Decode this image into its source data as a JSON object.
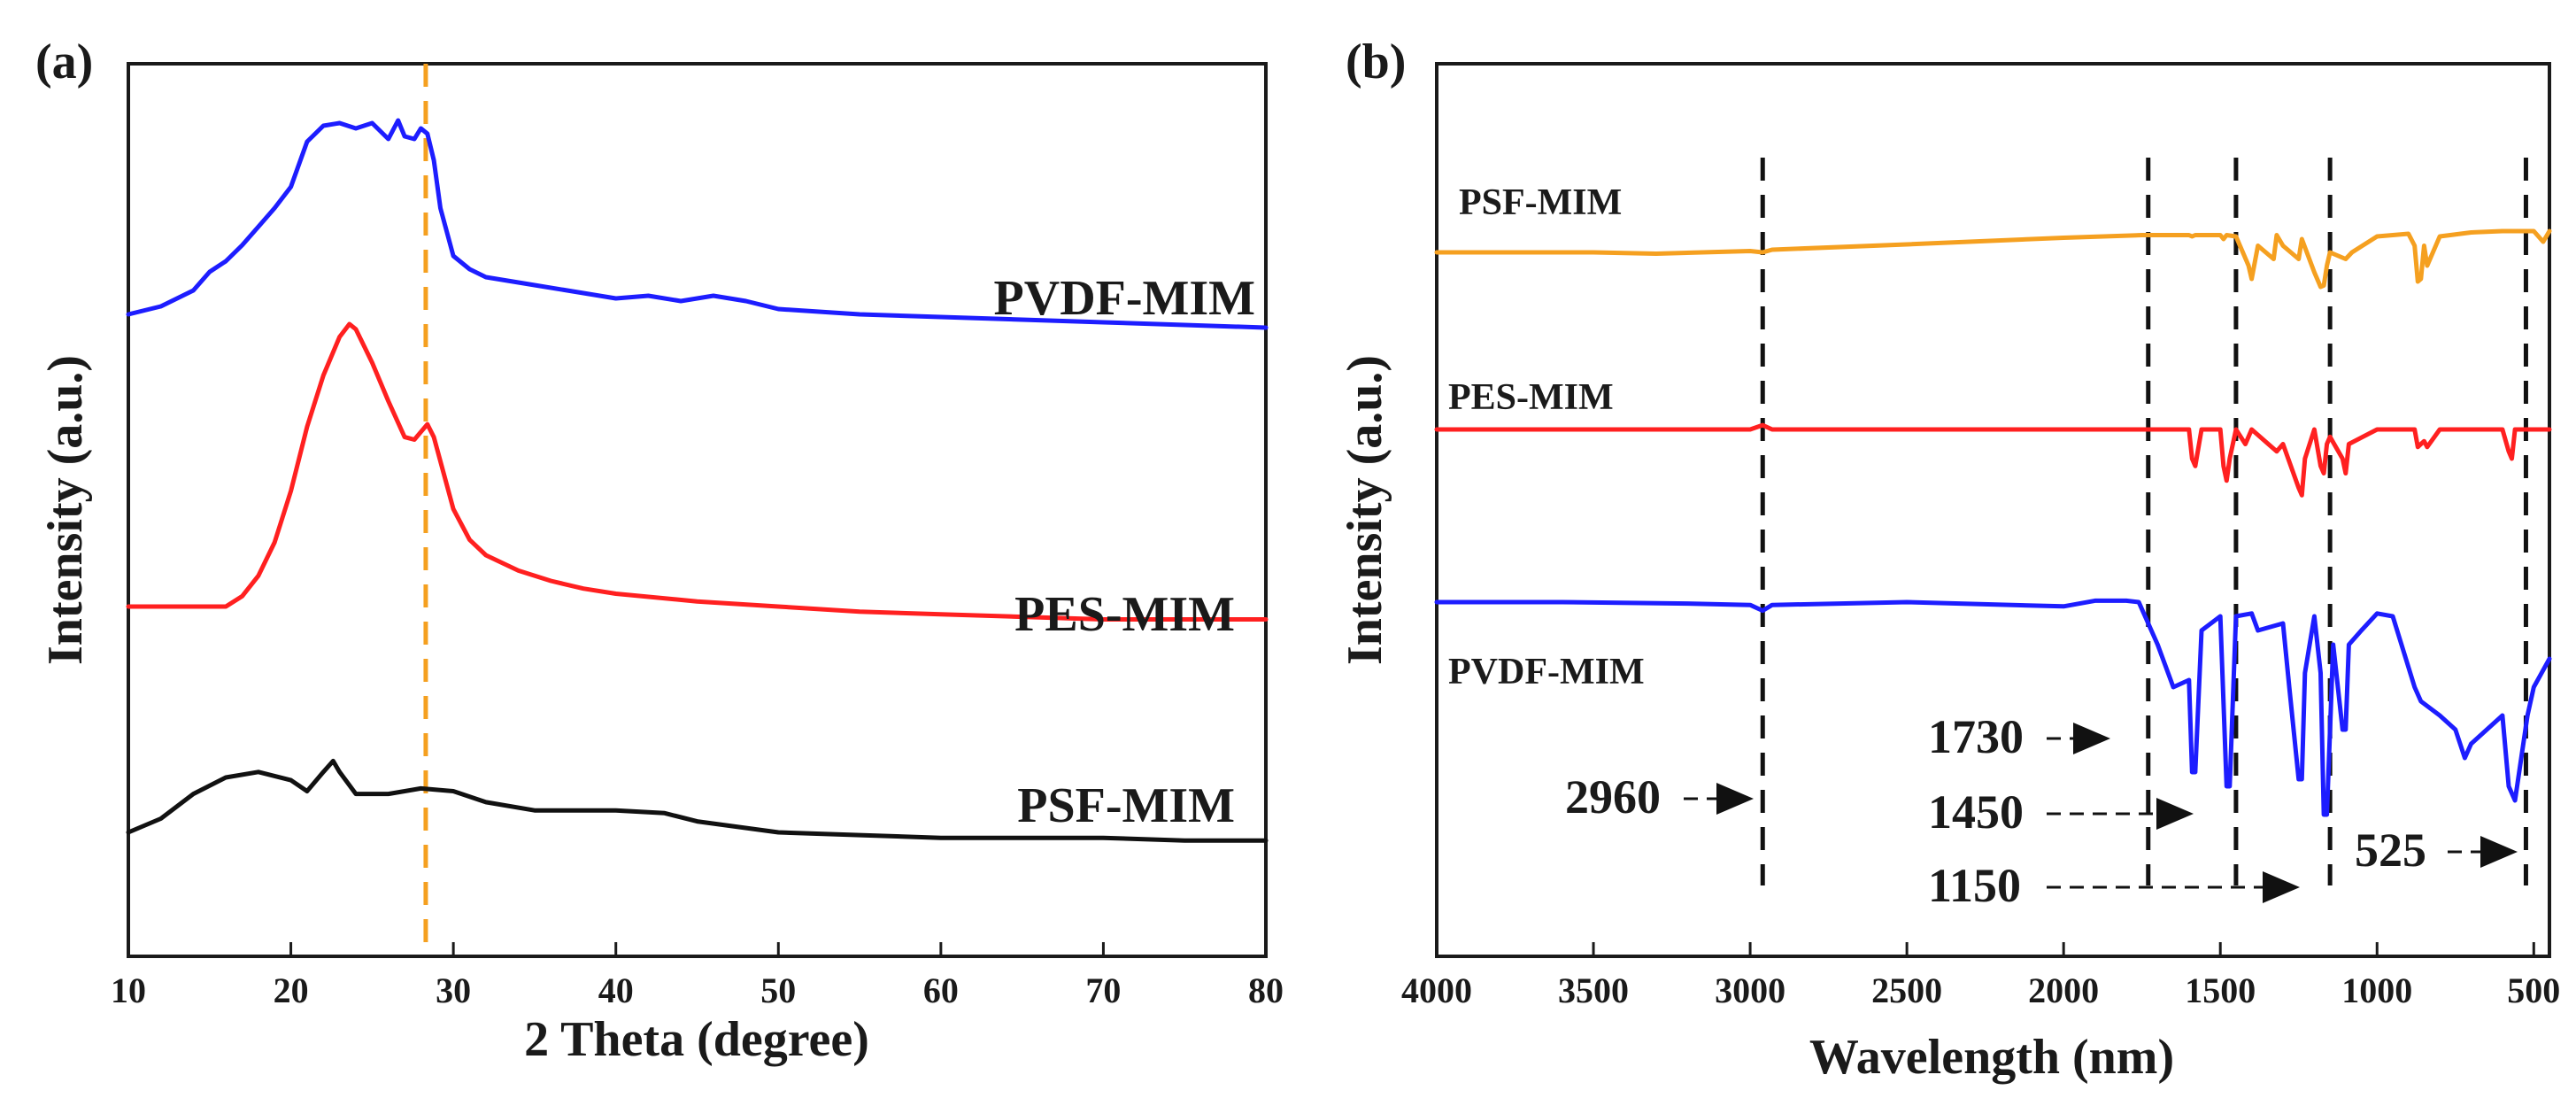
{
  "chart_data": [
    {
      "panel_label": "(a)",
      "type": "line",
      "xlabel": "2 Theta (degree)",
      "ylabel": "Intensity (a.u.)",
      "xlim": [
        10,
        80
      ],
      "x_ticks": [
        "10",
        "20",
        "30",
        "40",
        "50",
        "60",
        "70",
        "80"
      ],
      "reference_line_x": 28.3,
      "reference_line_color": "#f5a020",
      "series": [
        {
          "name": "PVDF-MIM",
          "label": "PVDF-MIM",
          "color": "#1d1dff",
          "x": [
            10,
            12,
            14,
            15,
            16,
            17,
            18,
            19,
            20,
            21,
            22,
            23,
            24,
            25,
            26,
            26.6,
            27,
            27.6,
            28,
            28.4,
            28.8,
            29.2,
            30,
            31,
            32,
            35,
            40,
            42,
            44,
            46,
            48,
            50,
            55,
            60,
            65,
            70,
            75,
            80
          ],
          "y": [
            0,
            3,
            9,
            16,
            20,
            26,
            33,
            40,
            48,
            65,
            71,
            72,
            70,
            72,
            66,
            73,
            67,
            66,
            70,
            68,
            58,
            40,
            22,
            17,
            14,
            11,
            6,
            7,
            5,
            7,
            5,
            2,
            0,
            -1,
            -2,
            -3,
            -4,
            -5
          ]
        },
        {
          "name": "PES-MIM",
          "label": "PES-MIM",
          "color": "#ff2020",
          "x": [
            10,
            14,
            16,
            17,
            18,
            19,
            20,
            21,
            22,
            23,
            23.6,
            24,
            25,
            26,
            27,
            27.6,
            28,
            28.4,
            28.8,
            29.4,
            30,
            31,
            32,
            34,
            36,
            38,
            40,
            45,
            50,
            55,
            60,
            65,
            70,
            75,
            80
          ],
          "y": [
            0,
            0,
            0,
            4,
            12,
            25,
            45,
            70,
            90,
            105,
            110,
            108,
            95,
            80,
            66,
            65,
            68,
            71,
            66,
            52,
            38,
            26,
            20,
            14,
            10,
            7,
            5,
            2,
            0,
            -2,
            -3,
            -4,
            -5,
            -5,
            -5
          ]
        },
        {
          "name": "PSF-MIM",
          "label": "PSF-MIM",
          "color": "#111111",
          "x": [
            10,
            12,
            14,
            16,
            18,
            20,
            21,
            22,
            22.6,
            23,
            24,
            25,
            26,
            28,
            30,
            32,
            35,
            40,
            43,
            45,
            50,
            55,
            60,
            65,
            70,
            75,
            80
          ],
          "y": [
            0,
            5,
            14,
            20,
            22,
            19,
            15,
            22,
            26,
            22,
            14,
            14,
            14,
            16,
            15,
            11,
            8,
            8,
            7,
            4,
            0,
            -1,
            -2,
            -2,
            -2,
            -3,
            -3
          ]
        }
      ]
    },
    {
      "panel_label": "(b)",
      "type": "line",
      "xlabel": "Wavelength (nm)",
      "ylabel": "Intensity (a.u.)",
      "xlim": [
        4000,
        450
      ],
      "x_ticks": [
        "4000",
        "3500",
        "3000",
        "2500",
        "2000",
        "1500",
        "1000",
        "500"
      ],
      "reference_lines_x": [
        2960,
        1730,
        1450,
        1150,
        525
      ],
      "annotations": [
        {
          "text": "2960",
          "target_x": 2960
        },
        {
          "text": "1730",
          "target_x": 1730
        },
        {
          "text": "1450",
          "target_x": 1450
        },
        {
          "text": "1150",
          "target_x": 1150
        },
        {
          "text": "525",
          "target_x": 525
        }
      ],
      "series": [
        {
          "name": "PSF-MIM",
          "label": "PSF-MIM",
          "color": "#f5a020",
          "x": [
            4000,
            3500,
            3300,
            3000,
            2960,
            2930,
            2500,
            2000,
            1750,
            1600,
            1590,
            1580,
            1500,
            1490,
            1480,
            1450,
            1410,
            1400,
            1380,
            1330,
            1320,
            1300,
            1250,
            1240,
            1200,
            1180,
            1170,
            1160,
            1150,
            1100,
            1080,
            1000,
            900,
            880,
            870,
            860,
            850,
            840,
            800,
            700,
            600,
            500,
            470,
            450
          ],
          "y": [
            0,
            0,
            -1,
            1,
            0,
            2,
            6,
            11,
            13,
            13,
            12,
            13,
            13,
            10,
            13,
            12,
            -10,
            -20,
            5,
            -5,
            13,
            5,
            -5,
            10,
            -15,
            -26,
            -25,
            -10,
            0,
            -5,
            0,
            12,
            14,
            5,
            -22,
            -20,
            5,
            -10,
            12,
            15,
            16,
            16,
            8,
            16
          ]
        },
        {
          "name": "PES-MIM",
          "label": "PES-MIM",
          "color": "#ff2020",
          "x": [
            4000,
            3500,
            3000,
            2960,
            2930,
            2500,
            2000,
            1760,
            1600,
            1590,
            1580,
            1560,
            1500,
            1490,
            1480,
            1470,
            1450,
            1420,
            1400,
            1320,
            1300,
            1250,
            1240,
            1230,
            1200,
            1180,
            1170,
            1160,
            1150,
            1110,
            1100,
            1090,
            1000,
            880,
            870,
            860,
            850,
            840,
            800,
            600,
            580,
            570,
            560,
            500,
            450
          ],
          "y": [
            0,
            0,
            0,
            3,
            0,
            0,
            0,
            0,
            0,
            -20,
            -25,
            0,
            0,
            -25,
            -35,
            -20,
            0,
            -10,
            0,
            -15,
            -10,
            -40,
            -45,
            -20,
            0,
            -25,
            -30,
            -10,
            -5,
            -20,
            -30,
            -10,
            0,
            0,
            -12,
            -10,
            -8,
            -12,
            0,
            0,
            -15,
            -20,
            0,
            0,
            0
          ]
        },
        {
          "name": "PVDF-MIM",
          "label": "PVDF-MIM",
          "color": "#1d1dff",
          "x": [
            4000,
            3600,
            3200,
            3000,
            2960,
            2930,
            2500,
            2000,
            1900,
            1800,
            1760,
            1700,
            1650,
            1600,
            1590,
            1580,
            1560,
            1500,
            1480,
            1470,
            1450,
            1400,
            1380,
            1300,
            1280,
            1250,
            1240,
            1230,
            1200,
            1180,
            1170,
            1160,
            1140,
            1110,
            1100,
            1090,
            1050,
            1000,
            950,
            880,
            860,
            800,
            750,
            720,
            700,
            650,
            600,
            580,
            560,
            520,
            500,
            450
          ],
          "y": [
            0,
            0,
            -1,
            -2,
            -6,
            -2,
            0,
            -3,
            1,
            1,
            0,
            -30,
            -60,
            -55,
            -120,
            -120,
            -20,
            -10,
            -130,
            -130,
            -10,
            -8,
            -20,
            -15,
            -60,
            -125,
            -125,
            -50,
            -10,
            -50,
            -150,
            -150,
            -30,
            -90,
            -90,
            -30,
            -20,
            -8,
            -10,
            -60,
            -70,
            -80,
            -90,
            -110,
            -100,
            -90,
            -80,
            -130,
            -140,
            -80,
            -60,
            -40
          ]
        }
      ]
    }
  ]
}
